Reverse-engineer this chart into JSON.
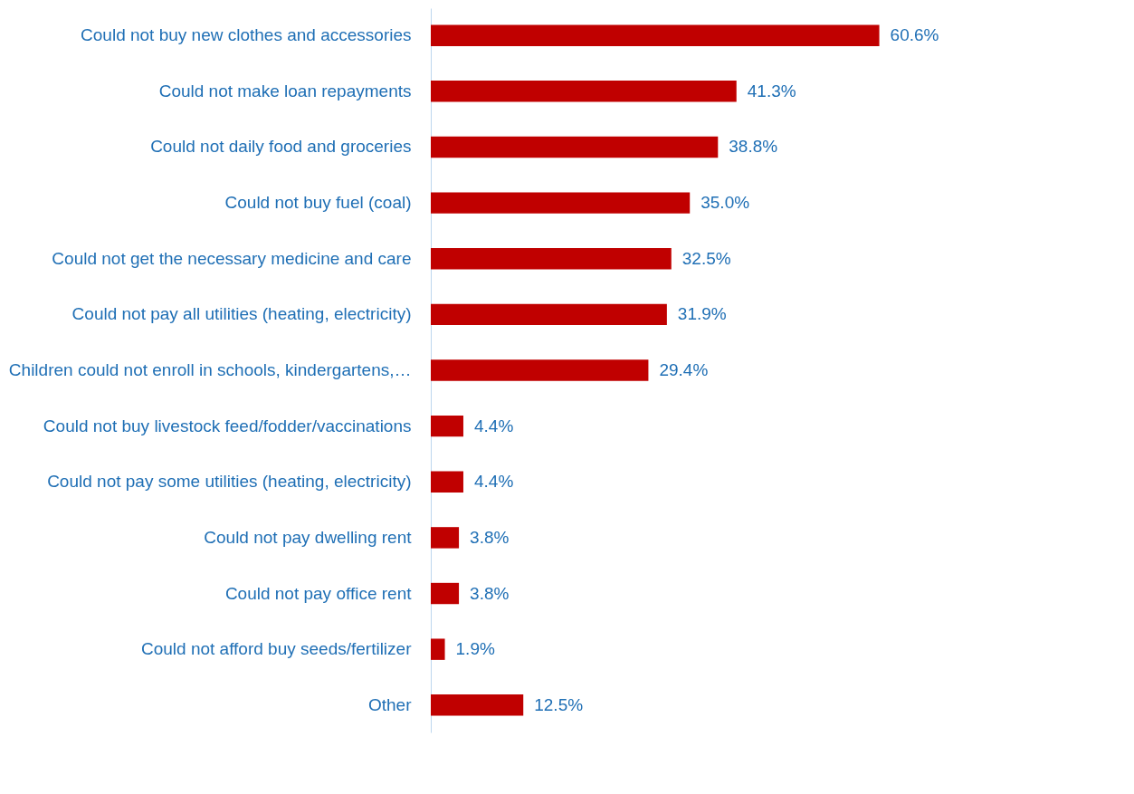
{
  "chart_data": {
    "type": "bar",
    "orientation": "horizontal",
    "categories": [
      "Could not buy new clothes and accessories",
      "Could not make loan repayments",
      "Could not daily food and groceries",
      "Could not buy fuel (coal)",
      "Could not get the necessary medicine and care",
      "Could not pay all utilities (heating, electricity)",
      "Children could not enroll in schools, kindergartens,…",
      "Could not buy livestock feed/fodder/vaccinations",
      "Could not pay some utilities (heating, electricity)",
      "Could not pay dwelling rent",
      "Could not pay office rent",
      "Could not afford buy seeds/fertilizer",
      "Other"
    ],
    "values": [
      60.6,
      41.3,
      38.8,
      35.0,
      32.5,
      31.9,
      29.4,
      4.4,
      4.4,
      3.8,
      3.8,
      1.9,
      12.5
    ],
    "value_labels": [
      "60.6%",
      "41.3%",
      "38.8%",
      "35.0%",
      "32.5%",
      "31.9%",
      "29.4%",
      "4.4%",
      "4.4%",
      "3.8%",
      "3.8%",
      "1.9%",
      "12.5%"
    ],
    "color": "#c00000"
  }
}
